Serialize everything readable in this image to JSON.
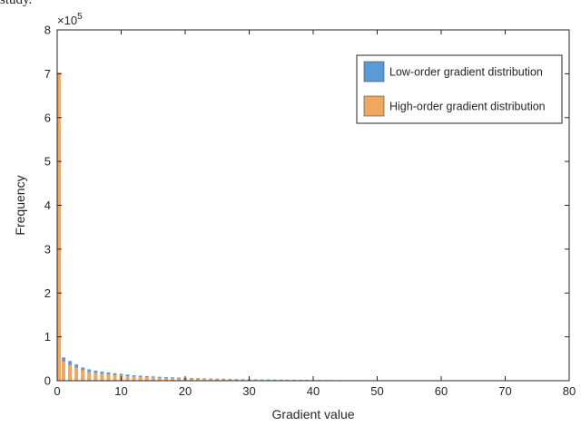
{
  "caption_fragment": "study.",
  "chart_data": {
    "type": "bar",
    "title": "",
    "xlabel": "Gradient value",
    "ylabel": "Frequency",
    "xlim": [
      0,
      80
    ],
    "ylim": [
      0,
      800000
    ],
    "xticks": [
      0,
      10,
      20,
      30,
      40,
      50,
      60,
      70,
      80
    ],
    "yticks": [
      0,
      1,
      2,
      3,
      4,
      5,
      6,
      7,
      8
    ],
    "y_exponent_label": "×10",
    "y_exponent_power": "5",
    "grid": false,
    "legend_position": "top-right",
    "x": [
      0,
      1,
      2,
      3,
      4,
      5,
      6,
      7,
      8,
      9,
      10,
      11,
      12,
      13,
      14,
      15,
      16,
      17,
      18,
      19,
      20,
      21,
      22,
      23,
      24,
      25,
      26,
      27,
      28,
      29,
      30,
      31,
      32,
      33,
      34,
      35,
      36,
      37,
      38,
      39,
      40,
      41,
      42,
      43,
      44,
      45,
      46,
      47,
      48,
      49,
      50,
      51,
      52,
      53,
      54,
      55,
      56,
      57,
      58,
      59,
      60,
      61,
      62,
      63,
      64,
      65,
      66,
      67,
      68,
      69,
      70,
      71,
      72,
      73,
      74,
      75,
      76,
      77,
      78,
      79,
      80
    ],
    "series": [
      {
        "name": "Low-order gradient distribution",
        "color": "#5B9BD5",
        "values": [
          565000,
          53000,
          45000,
          37000,
          30000,
          26000,
          23000,
          21000,
          19000,
          17000,
          15500,
          14000,
          12500,
          11500,
          10500,
          9800,
          9000,
          8400,
          7800,
          7200,
          6700,
          6200,
          5800,
          5400,
          5000,
          4700,
          4400,
          4100,
          3800,
          3500,
          3300,
          3100,
          2900,
          2700,
          2500,
          2350,
          2200,
          2050,
          1900,
          1800,
          1700,
          1600,
          1500,
          1420,
          1340,
          1260,
          1190,
          1120,
          1060,
          1000,
          950,
          900,
          850,
          800,
          760,
          720,
          680,
          640,
          610,
          580,
          550,
          520,
          490,
          0,
          0,
          0,
          0,
          0,
          0,
          0,
          0,
          0,
          0,
          0,
          0,
          0,
          0,
          0,
          0,
          0,
          0
        ]
      },
      {
        "name": "High-order gradient distribution",
        "color": "#F0A860",
        "values": [
          703000,
          44000,
          36000,
          30000,
          24000,
          20000,
          18000,
          16000,
          14500,
          13000,
          11800,
          10500,
          9600,
          8800,
          8100,
          7500,
          6900,
          6400,
          5900,
          5500,
          5100,
          4700,
          4400,
          4100,
          3800,
          3500,
          3300,
          3050,
          2850,
          2650,
          2450,
          2300,
          2150,
          2000,
          1850,
          1730,
          1620,
          1510,
          1410,
          1320,
          1230,
          1150,
          1080,
          1010,
          950,
          890,
          840,
          790,
          740,
          700,
          660,
          620,
          585,
          550,
          520,
          490,
          460,
          435,
          410,
          385,
          360,
          340,
          320,
          300,
          280,
          260,
          240,
          220,
          200,
          185,
          170,
          155,
          140,
          125,
          110,
          95,
          80,
          65,
          50,
          35,
          20
        ]
      }
    ]
  }
}
